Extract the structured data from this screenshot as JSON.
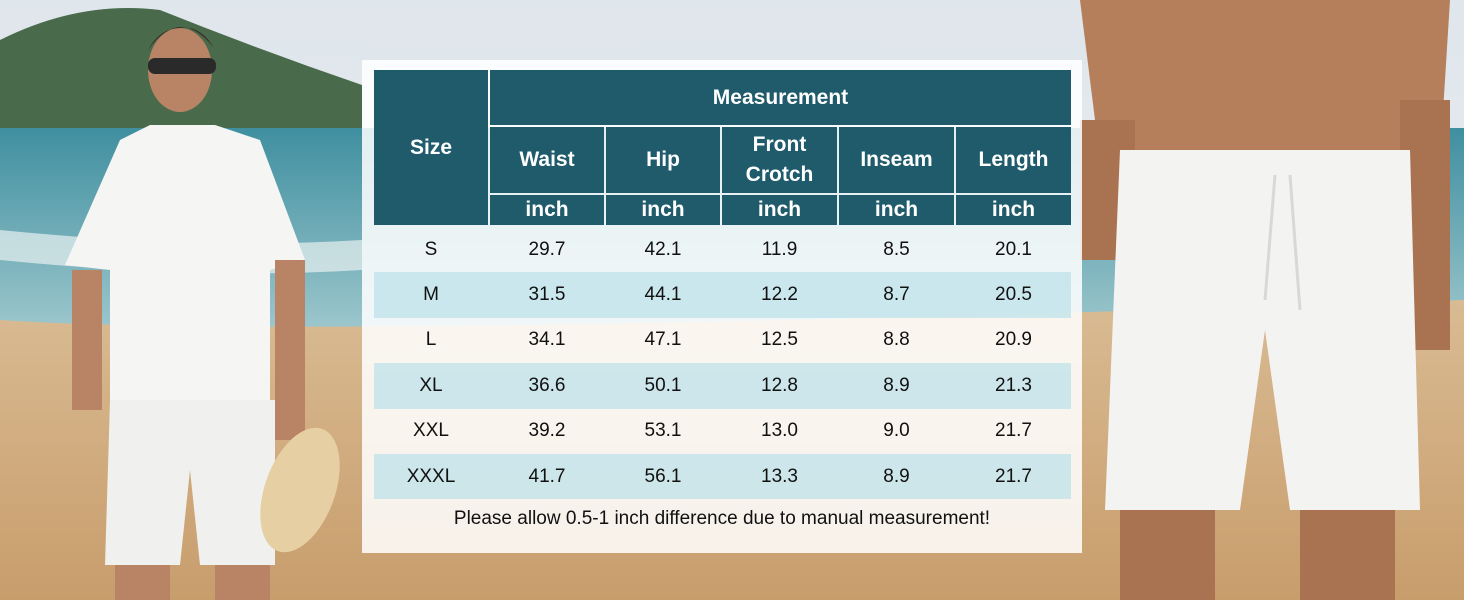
{
  "table": {
    "header": {
      "size": "Size",
      "group": "Measurement",
      "columns": [
        "Waist",
        "Hip",
        "Front Crotch",
        "Inseam",
        "Length"
      ],
      "units": [
        "inch",
        "inch",
        "inch",
        "inch",
        "inch"
      ]
    },
    "rows": [
      [
        "S",
        "29.7",
        "42.1",
        "11.9",
        "8.5",
        "20.1"
      ],
      [
        "M",
        "31.5",
        "44.1",
        "12.2",
        "8.7",
        "20.5"
      ],
      [
        "L",
        "34.1",
        "47.1",
        "12.5",
        "8.8",
        "20.9"
      ],
      [
        "XL",
        "36.6",
        "50.1",
        "12.8",
        "8.9",
        "21.3"
      ],
      [
        "XXL",
        "39.2",
        "53.1",
        "13.0",
        "9.0",
        "21.7"
      ],
      [
        "XXXL",
        "41.7",
        "56.1",
        "13.3",
        "8.9",
        "21.7"
      ]
    ],
    "note": "Please allow 0.5-1 inch difference due to manual measurement!"
  }
}
